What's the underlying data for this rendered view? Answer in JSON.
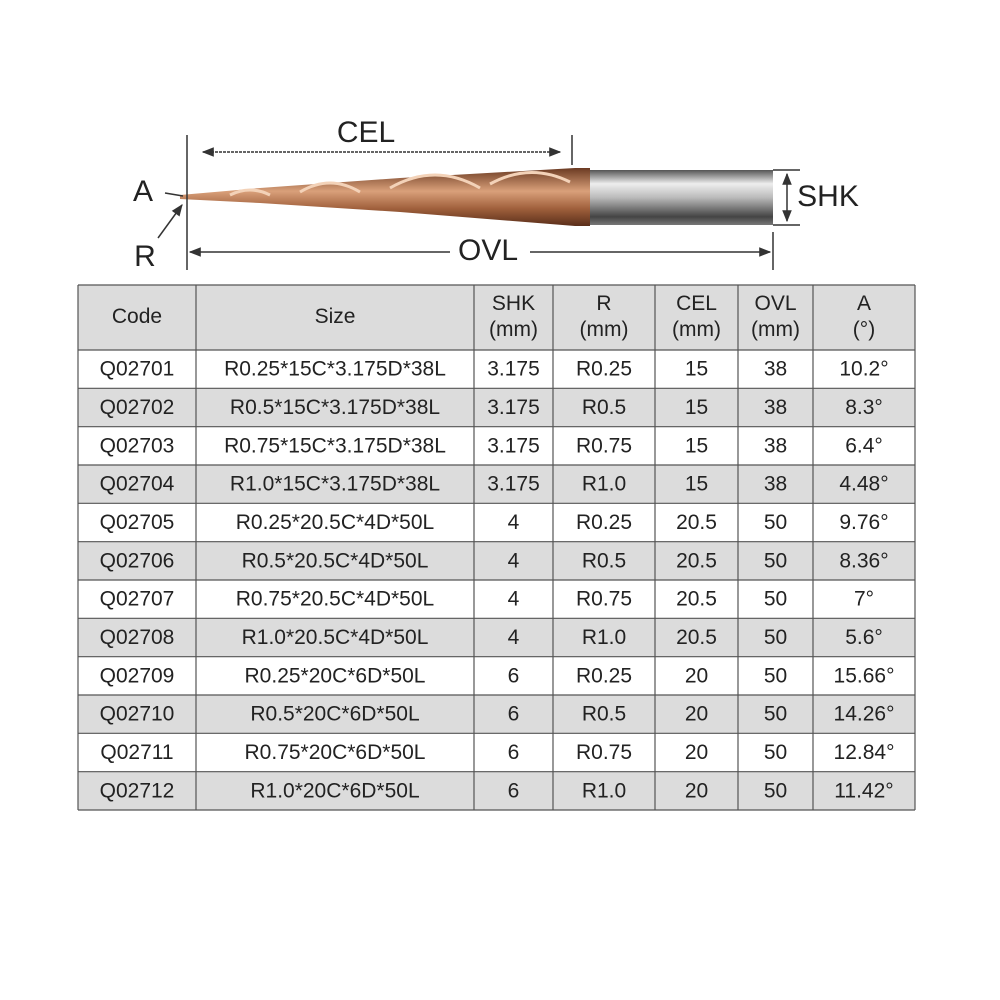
{
  "diagram": {
    "cel": "CEL",
    "shk": "SHK",
    "a": "A",
    "r": "R",
    "ovl": "OVL"
  },
  "table": {
    "header": [
      [
        "Code"
      ],
      [
        "Size"
      ],
      [
        "SHK",
        "(mm)"
      ],
      [
        "R",
        "(mm)"
      ],
      [
        "CEL",
        "(mm)"
      ],
      [
        "OVL",
        "(mm)"
      ],
      [
        "A",
        "(°)"
      ]
    ],
    "rows": [
      [
        "Q02701",
        "R0.25*15C*3.175D*38L",
        "3.175",
        "R0.25",
        "15",
        "38",
        "10.2°"
      ],
      [
        "Q02702",
        "R0.5*15C*3.175D*38L",
        "3.175",
        "R0.5",
        "15",
        "38",
        "8.3°"
      ],
      [
        "Q02703",
        "R0.75*15C*3.175D*38L",
        "3.175",
        "R0.75",
        "15",
        "38",
        "6.4°"
      ],
      [
        "Q02704",
        "R1.0*15C*3.175D*38L",
        "3.175",
        "R1.0",
        "15",
        "38",
        "4.48°"
      ],
      [
        "Q02705",
        "R0.25*20.5C*4D*50L",
        "4",
        "R0.25",
        "20.5",
        "50",
        "9.76°"
      ],
      [
        "Q02706",
        "R0.5*20.5C*4D*50L",
        "4",
        "R0.5",
        "20.5",
        "50",
        "8.36°"
      ],
      [
        "Q02707",
        "R0.75*20.5C*4D*50L",
        "4",
        "R0.75",
        "20.5",
        "50",
        "7°"
      ],
      [
        "Q02708",
        "R1.0*20.5C*4D*50L",
        "4",
        "R1.0",
        "20.5",
        "50",
        "5.6°"
      ],
      [
        "Q02709",
        "R0.25*20C*6D*50L",
        "6",
        "R0.25",
        "20",
        "50",
        "15.66°"
      ],
      [
        "Q02710",
        "R0.5*20C*6D*50L",
        "6",
        "R0.5",
        "20",
        "50",
        "14.26°"
      ],
      [
        "Q02711",
        "R0.75*20C*6D*50L",
        "6",
        "R0.75",
        "20",
        "50",
        "12.84°"
      ],
      [
        "Q02712",
        "R1.0*20C*6D*50L",
        "6",
        "R1.0",
        "20",
        "50",
        "11.42°"
      ]
    ]
  }
}
